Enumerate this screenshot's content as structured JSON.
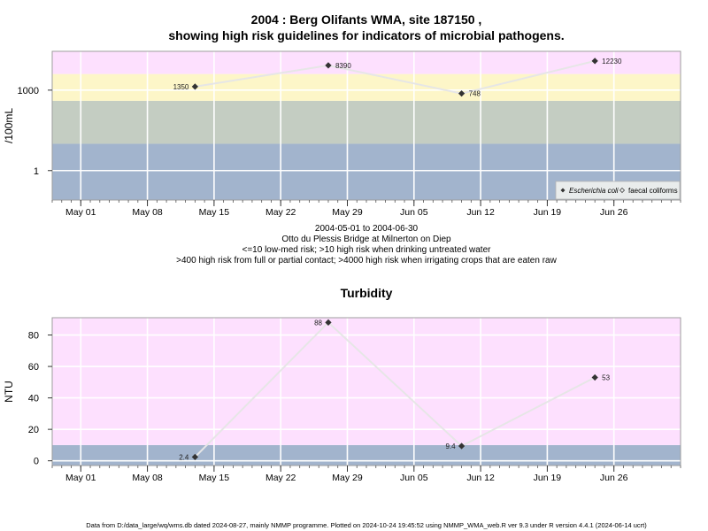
{
  "title_line1": "2004 : Berg Olifants WMA, site 187150 ,",
  "title_line2": "showing high risk guidelines for indicators of microbial pathogens.",
  "caption": [
    "2004-05-01 to 2004-06-30",
    "Otto du Plessis Bridge at Milnerton on Diep",
    "<=10 low-med risk; >10 high risk when drinking untreated water",
    ">400 high risk from full or partial contact; >4000 high risk when irrigating crops that are eaten raw"
  ],
  "footer": "Data from D:/data_large/wq/wms.db dated 2024-08-27, mainly NMMP programme. Plotted on 2024-10-24 19:45:52 using NMMP_WMA_web.R ver 9.3 under R version 4.4.1 (2024-06-14 ucrt)",
  "colors": {
    "pink": "#fde0fe",
    "yellow": "#fdf6c8",
    "gray": "#c4cdc2",
    "blue": "#a2b4cd",
    "line": "#e6e6e6",
    "point": "#333333",
    "frame": "#9e9e9e"
  },
  "chart_data": [
    {
      "type": "line",
      "title": "",
      "ylabel": "/100mL",
      "xlabel": "",
      "x_ticks": [
        "May 01",
        "May 08",
        "May 15",
        "May 22",
        "May 29",
        "Jun 05",
        "Jun 12",
        "Jun 19",
        "Jun 26"
      ],
      "y_ticks": [
        "1",
        "1000"
      ],
      "y_scale": "log",
      "xlim": [
        "2004-04-28",
        "2004-07-03"
      ],
      "ylim": [
        0.08,
        28000
      ],
      "bands": [
        {
          "from": 0.08,
          "to": 10,
          "color": "#a2b4cd"
        },
        {
          "from": 10,
          "to": 400,
          "color": "#c4cdc2"
        },
        {
          "from": 400,
          "to": 4000,
          "color": "#fdf6c8"
        },
        {
          "from": 4000,
          "to": 28000,
          "color": "#fde0fe"
        }
      ],
      "grid": true,
      "legend": {
        "position": "bottom-right",
        "entries": [
          "Escherichia coli",
          "faecal coliforms"
        ]
      },
      "series": [
        {
          "name": "Escherichia coli",
          "x": [
            "2004-05-13",
            "2004-05-27",
            "2004-06-10",
            "2004-06-24"
          ],
          "y": [
            1350,
            8390,
            748,
            12230
          ],
          "labels": [
            "1350",
            "8390",
            "748",
            "12230"
          ],
          "label_side": [
            "left",
            "right",
            "right",
            "right"
          ]
        }
      ]
    },
    {
      "type": "line",
      "title": "Turbidity",
      "ylabel": "NTU",
      "xlabel": "",
      "x_ticks": [
        "May 01",
        "May 08",
        "May 15",
        "May 22",
        "May 29",
        "Jun 05",
        "Jun 12",
        "Jun 19",
        "Jun 26"
      ],
      "y_ticks": [
        "0",
        "20",
        "40",
        "60",
        "80"
      ],
      "xlim": [
        "2004-04-28",
        "2004-07-03"
      ],
      "ylim": [
        -3,
        91
      ],
      "bands": [
        {
          "from": -3,
          "to": 10,
          "color": "#a2b4cd"
        },
        {
          "from": 10,
          "to": 91,
          "color": "#fde0fe"
        }
      ],
      "grid": true,
      "series": [
        {
          "x": [
            "2004-05-13",
            "2004-05-27",
            "2004-06-10",
            "2004-06-24"
          ],
          "y": [
            2.4,
            88,
            9.4,
            53
          ],
          "labels": [
            "2.4",
            "88",
            "9.4",
            "53"
          ],
          "label_side": [
            "left",
            "left",
            "left",
            "right"
          ]
        }
      ]
    }
  ]
}
